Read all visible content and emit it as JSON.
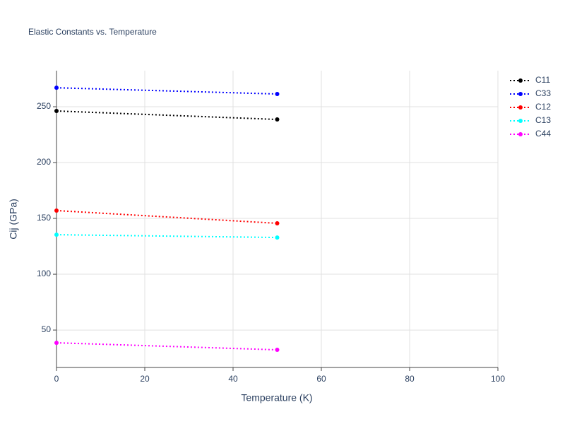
{
  "chart_data": {
    "type": "line",
    "title": "Elastic Constants vs. Temperature",
    "x_label": "Temperature (K)",
    "y_label": "Cij (GPa)",
    "x": [
      0,
      50
    ],
    "series": [
      {
        "name": "C11",
        "color": "#000000",
        "values": [
          246.2,
          238.6
        ]
      },
      {
        "name": "C33",
        "color": "#0000ff",
        "values": [
          267.0,
          261.4
        ]
      },
      {
        "name": "C12",
        "color": "#ff0000",
        "values": [
          157.0,
          145.6
        ]
      },
      {
        "name": "C13",
        "color": "#00ffff",
        "values": [
          135.4,
          132.9
        ]
      },
      {
        "name": "C44",
        "color": "#ff00ff",
        "values": [
          38.6,
          32.3
        ]
      }
    ],
    "xlim": [
      0,
      100
    ],
    "xticks": [
      0,
      20,
      40,
      60,
      80,
      100
    ],
    "ylim": [
      16.5,
      282.3
    ],
    "yticks": [
      50,
      100,
      150,
      200,
      250
    ],
    "grid": true,
    "legend": "right"
  }
}
